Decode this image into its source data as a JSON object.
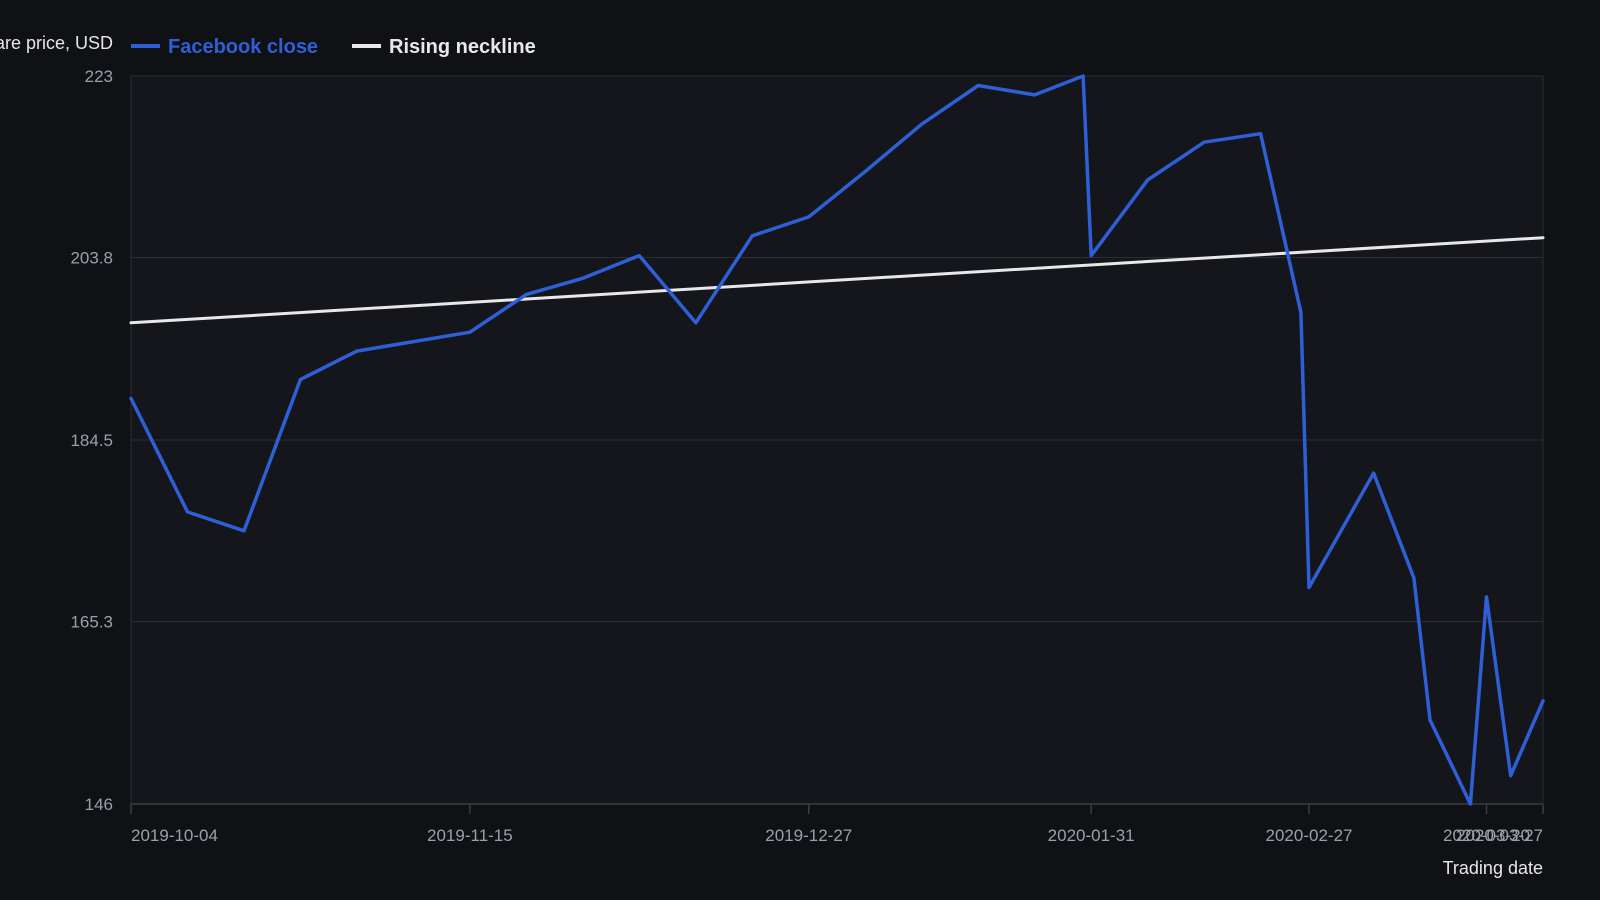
{
  "colors": {
    "background": "#0f1115",
    "plot_background": "#14161b",
    "grid": "#2a2d33",
    "axis": "#3a3d44",
    "tick_text": "#9aa0aa",
    "facebook_close": "#2f5fd6",
    "neckline": "#e8e8e8"
  },
  "chart_data": {
    "type": "line",
    "title": "",
    "xlabel": "Trading date",
    "ylabel": "Share price, USD",
    "ylim": [
      146,
      223
    ],
    "yticks": [
      "146",
      "165.3",
      "184.5",
      "203.8",
      "223"
    ],
    "xticks": [
      "2019-10-04",
      "2019-11-15",
      "2019-12-27",
      "2020-01-31",
      "2020-02-27",
      "2020-03-20",
      "2020-03-27"
    ],
    "xlim": [
      "2019-10-04",
      "2020-03-27"
    ],
    "grid": true,
    "legend_position": "top-left",
    "series": [
      {
        "name": "Facebook close",
        "color": "#2f5fd6",
        "points": [
          {
            "date": "2019-10-04",
            "value": 188.9
          },
          {
            "date": "2019-10-11",
            "value": 176.9
          },
          {
            "date": "2019-10-18",
            "value": 174.9
          },
          {
            "date": "2019-10-25",
            "value": 190.9
          },
          {
            "date": "2019-11-01",
            "value": 193.9
          },
          {
            "date": "2019-11-15",
            "value": 195.9
          },
          {
            "date": "2019-11-22",
            "value": 199.9
          },
          {
            "date": "2019-11-29",
            "value": 201.6
          },
          {
            "date": "2019-12-06",
            "value": 204.0
          },
          {
            "date": "2019-12-13",
            "value": 196.9
          },
          {
            "date": "2019-12-20",
            "value": 206.1
          },
          {
            "date": "2019-12-27",
            "value": 208.1
          },
          {
            "date": "2020-01-03",
            "value": 212.9
          },
          {
            "date": "2020-01-10",
            "value": 217.9
          },
          {
            "date": "2020-01-17",
            "value": 222.0
          },
          {
            "date": "2020-01-24",
            "value": 221.0
          },
          {
            "date": "2020-01-30",
            "value": 223.0
          },
          {
            "date": "2020-01-31",
            "value": 204.0
          },
          {
            "date": "2020-02-07",
            "value": 212.0
          },
          {
            "date": "2020-02-14",
            "value": 216.0
          },
          {
            "date": "2020-02-21",
            "value": 216.9
          },
          {
            "date": "2020-02-26",
            "value": 198.0
          },
          {
            "date": "2020-02-27",
            "value": 168.9
          },
          {
            "date": "2020-03-06",
            "value": 181.0
          },
          {
            "date": "2020-03-11",
            "value": 169.9
          },
          {
            "date": "2020-03-13",
            "value": 154.9
          },
          {
            "date": "2020-03-18",
            "value": 146.0
          },
          {
            "date": "2020-03-20",
            "value": 167.9
          },
          {
            "date": "2020-03-23",
            "value": 149.0
          },
          {
            "date": "2020-03-27",
            "value": 156.9
          }
        ]
      },
      {
        "name": "Rising neckline",
        "color": "#e8e8e8",
        "points": [
          {
            "date": "2019-10-04",
            "value": 196.9
          },
          {
            "date": "2020-03-27",
            "value": 205.9
          }
        ]
      }
    ]
  }
}
